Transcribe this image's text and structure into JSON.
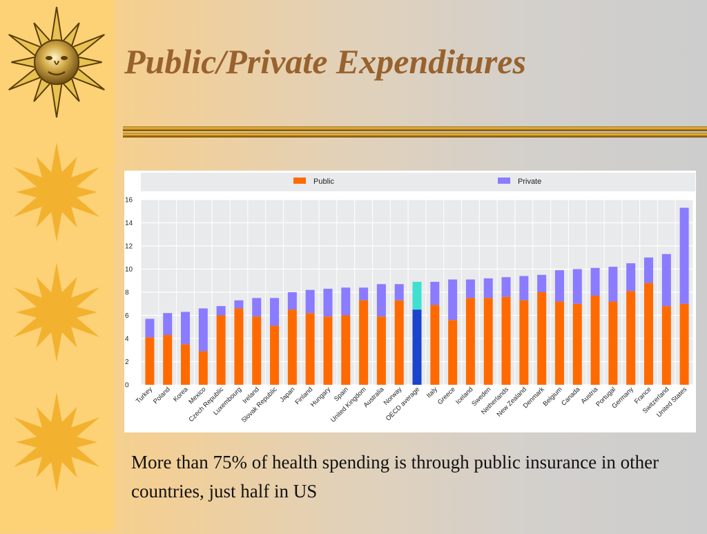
{
  "slide": {
    "title": "Public/Private Expenditures",
    "caption": "More than 75% of health spending is through public insurance in other countries, just half in US"
  },
  "colors": {
    "public": "#ff6a00",
    "private": "#8a7bff",
    "oecd_public": "#1a44cc",
    "oecd_private": "#40e0d0",
    "title": "#98622e"
  },
  "icons": [
    "sun-face-icon",
    "sun-icon",
    "sun-icon",
    "sun-icon"
  ],
  "chart_data": {
    "type": "bar",
    "stacked": true,
    "title": "",
    "xlabel": "",
    "ylabel": "",
    "ylim": [
      0,
      16
    ],
    "yticks": [
      0,
      2,
      4,
      6,
      8,
      10,
      12,
      14,
      16
    ],
    "grid": true,
    "legend_position": "top",
    "highlight_category": "OECD average",
    "categories": [
      "Turkey",
      "Poland",
      "Korea",
      "Mexico",
      "Czech Republic",
      "Luxembourg",
      "Ireland",
      "Slovak Republic",
      "Japan",
      "Finland",
      "Hungary",
      "Spain",
      "United Kingdom",
      "Australia",
      "Norway",
      "OECD average",
      "Italy",
      "Greece",
      "Iceland",
      "Sweden",
      "Netherlands",
      "New Zealand",
      "Denmark",
      "Belgium",
      "Canada",
      "Austria",
      "Portugal",
      "Germany",
      "France",
      "Switzerland",
      "United States"
    ],
    "series": [
      {
        "name": "Public",
        "values": [
          4.1,
          4.3,
          3.5,
          2.9,
          6.0,
          6.6,
          5.9,
          5.1,
          6.5,
          6.2,
          5.9,
          6.0,
          7.3,
          5.9,
          7.3,
          6.5,
          6.9,
          5.6,
          7.5,
          7.5,
          7.6,
          7.3,
          8.0,
          7.2,
          7.0,
          7.7,
          7.2,
          8.1,
          8.8,
          6.8,
          7.0
        ]
      },
      {
        "name": "Private",
        "values": [
          1.6,
          1.9,
          2.8,
          3.7,
          0.8,
          0.7,
          1.6,
          2.4,
          1.5,
          2.0,
          2.4,
          2.4,
          1.1,
          2.8,
          1.4,
          2.4,
          2.0,
          3.5,
          1.6,
          1.7,
          1.7,
          2.1,
          1.5,
          2.7,
          3.0,
          2.4,
          3.0,
          2.4,
          2.2,
          4.5,
          8.3
        ]
      }
    ]
  }
}
